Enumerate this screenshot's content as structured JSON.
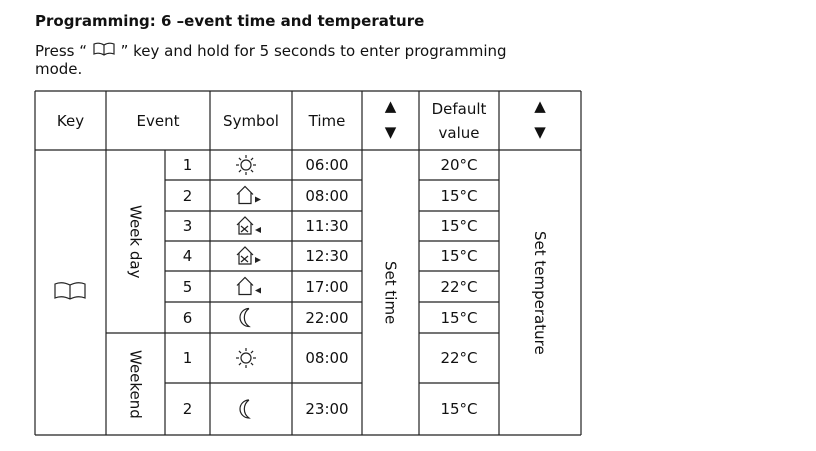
{
  "header": {
    "title": "Programming: 6 –event time and temperature",
    "intro_before": "Press “",
    "intro_after": "” key and hold for 5 seconds to enter programming mode."
  },
  "table": {
    "columns": [
      "Key",
      "Event",
      "Symbol",
      "Time"
    ],
    "time_arrows": [
      "▲",
      "▼"
    ],
    "default_header": "Default value",
    "temp_arrows": [
      "▲",
      "▼"
    ],
    "set_time": "Set time",
    "set_temperature": "Set temperature",
    "groups": [
      {
        "label": "Week day",
        "rows": [
          [
            "1",
            "06:00",
            "20°C"
          ],
          [
            "2",
            "08:00",
            "15°C"
          ],
          [
            "3",
            "11:30",
            "15°C"
          ],
          [
            "4",
            "12:30",
            "15°C"
          ],
          [
            "5",
            "17:00",
            "22°C"
          ],
          [
            "6",
            "22:00",
            "15°C"
          ]
        ]
      },
      {
        "label": "Weekend",
        "rows": [
          [
            "1",
            "08:00",
            "22°C"
          ],
          [
            "2",
            "23:00",
            "15°C"
          ]
        ]
      }
    ]
  }
}
